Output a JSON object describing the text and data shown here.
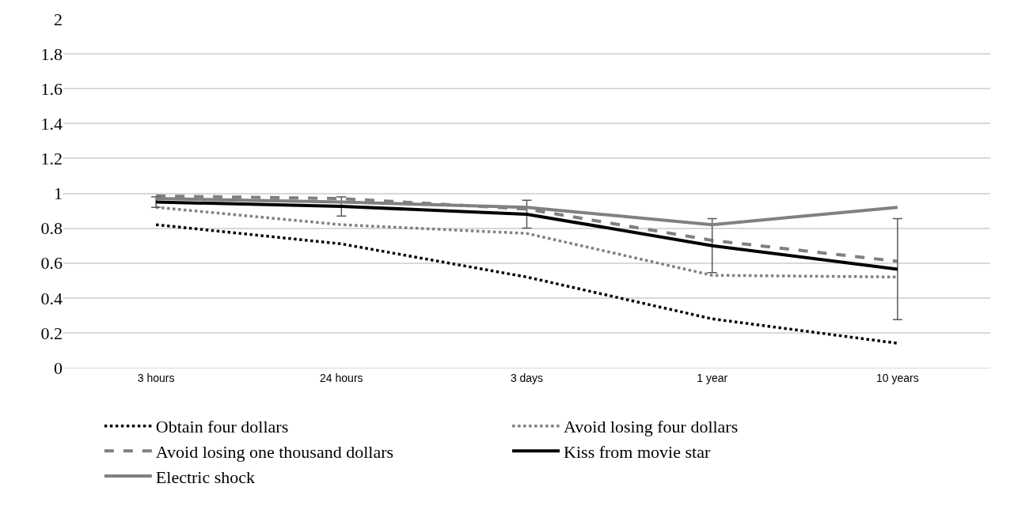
{
  "chart_data": {
    "type": "line",
    "categories": [
      "3 hours",
      "24 hours",
      "3 days",
      "1 year",
      "10 years"
    ],
    "series": [
      {
        "name": "Obtain four dollars",
        "color": "#000000",
        "line_style": "dotted",
        "values": [
          0.82,
          0.71,
          0.52,
          0.28,
          0.14
        ]
      },
      {
        "name": "Avoid losing four dollars",
        "color": "#808080",
        "line_style": "dotted",
        "values": [
          0.92,
          0.82,
          0.77,
          0.53,
          0.52
        ]
      },
      {
        "name": "Avoid losing one thousand dollars",
        "color": "#808080",
        "line_style": "dashed",
        "values": [
          0.985,
          0.97,
          0.91,
          0.73,
          0.61
        ]
      },
      {
        "name": "Kiss from movie star",
        "color": "#000000",
        "line_style": "solid",
        "values": [
          0.95,
          0.925,
          0.88,
          0.7,
          0.565
        ],
        "errors": [
          0.03,
          0.055,
          0.08,
          0.155,
          0.29
        ]
      },
      {
        "name": "Electric shock",
        "color": "#808080",
        "line_style": "solid",
        "values": [
          0.97,
          0.95,
          0.92,
          0.82,
          0.92
        ]
      }
    ],
    "ylim": [
      0,
      2
    ],
    "yticks": [
      0,
      0.2,
      0.4,
      0.6,
      0.8,
      1,
      1.2,
      1.4,
      1.6,
      1.8,
      2
    ],
    "grid": "y",
    "legend": "bottom",
    "marker": "none"
  }
}
